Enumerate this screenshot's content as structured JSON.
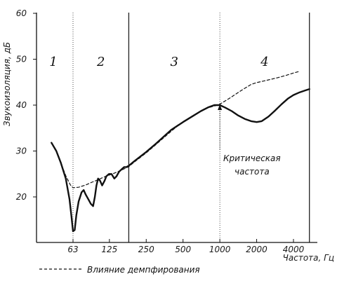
{
  "chart_data": {
    "type": "line",
    "title": "",
    "ylabel": "Звукоизоляция, дБ",
    "xlabel": "Частота, Гц",
    "x_scale": "log",
    "xlim": [
      40,
      6000
    ],
    "ylim": [
      10,
      60
    ],
    "x_ticks": [
      63,
      125,
      250,
      500,
      1000,
      2000,
      4000
    ],
    "x_tick_labels": [
      "63",
      "125",
      "250",
      "500",
      "1000",
      "2000",
      "4000"
    ],
    "y_ticks": [
      20,
      30,
      40,
      50,
      60
    ],
    "y_tick_labels": [
      "20",
      "30",
      "40",
      "50",
      "60"
    ],
    "grid": false,
    "legend": {
      "placement": "bottom-left",
      "entries": [
        "Влияние демпфирования"
      ]
    },
    "regions": [
      {
        "label": "1",
        "x_from": 40,
        "x_to": 63
      },
      {
        "label": "2",
        "x_from": 63,
        "x_to": 180
      },
      {
        "label": "3",
        "x_from": 180,
        "x_to": 1000
      },
      {
        "label": "4",
        "x_from": 1000,
        "x_to": 5400
      }
    ],
    "boundaries": [
      {
        "x": 63,
        "style": "dotted"
      },
      {
        "x": 180,
        "style": "solid"
      },
      {
        "x": 1000,
        "style": "dotted"
      },
      {
        "x": 5400,
        "style": "solid"
      }
    ],
    "series": [
      {
        "style": "solid",
        "x": [
          42,
          46,
          50,
          55,
          59,
          61,
          63,
          65,
          67,
          70,
          74,
          77,
          80,
          84,
          88,
          92,
          95,
          98,
          101,
          105,
          109,
          114,
          118,
          124,
          130,
          137,
          143,
          150,
          157,
          165,
          172,
          180,
          200,
          250,
          300,
          350,
          400,
          500,
          600,
          700,
          800,
          900,
          1000,
          1100,
          1250,
          1400,
          1600,
          1800,
          2000,
          2200,
          2500,
          2800,
          3200,
          3600,
          4000,
          4500,
          5000,
          5400
        ],
        "y": [
          31.8,
          30,
          27.5,
          24,
          19.5,
          16,
          12.5,
          12.8,
          16,
          19,
          21,
          21.5,
          20.5,
          19.5,
          18.5,
          18,
          20,
          22.5,
          24,
          23.5,
          22.5,
          23.5,
          24.5,
          25,
          25,
          24,
          24.5,
          25.5,
          26,
          26.5,
          26.5,
          26.8,
          27.8,
          29.8,
          31.6,
          33.2,
          34.6,
          36.3,
          37.6,
          38.7,
          39.5,
          40,
          40,
          39.5,
          38.7,
          37.8,
          37,
          36.5,
          36.3,
          36.5,
          37.5,
          38.7,
          40.2,
          41.4,
          42.2,
          42.8,
          43.2,
          43.5
        ]
      },
      {
        "name": "Влияние демпфирования",
        "style": "dashed",
        "x": [
          42,
          46,
          50,
          55,
          60,
          63,
          70,
          80,
          90,
          100,
          110,
          120,
          135,
          150,
          165,
          180,
          200,
          250,
          300,
          400,
          500,
          600,
          700,
          800,
          900,
          1000,
          1200,
          1500,
          1800,
          2000,
          2500,
          3000,
          3500,
          4000,
          4400
        ],
        "y": [
          31.8,
          30,
          27.5,
          24.6,
          22.6,
          22,
          22.1,
          22.6,
          23.2,
          23.7,
          24.2,
          24.6,
          25.1,
          25.6,
          26.1,
          26.6,
          27.6,
          29.6,
          31.4,
          34.3,
          36.4,
          37.6,
          38.7,
          39.4,
          39.8,
          40.2,
          41.5,
          43.2,
          44.5,
          44.9,
          45.5,
          46,
          46.5,
          47,
          47.3
        ]
      }
    ],
    "annotations": [
      {
        "text": "Критическая частота",
        "x": 1000
      }
    ]
  }
}
